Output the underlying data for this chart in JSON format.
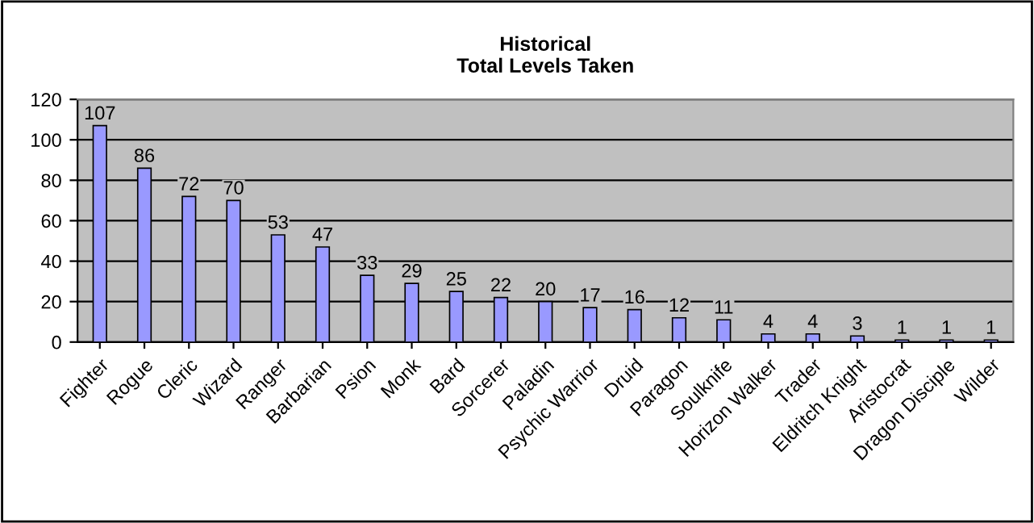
{
  "chart_data": {
    "type": "bar",
    "title": "Historical\nTotal Levels Taken",
    "categories": [
      "Fighter",
      "Rogue",
      "Cleric",
      "Wizard",
      "Ranger",
      "Barbarian",
      "Psion",
      "Monk",
      "Bard",
      "Sorcerer",
      "Paladin",
      "Psychic Warrior",
      "Druid",
      "Paragon",
      "Soulknife",
      "Horizon Walker",
      "Trader",
      "Eldritch Knight",
      "Aristocrat",
      "Dragon Disciple",
      "Wilder"
    ],
    "values": [
      107,
      86,
      72,
      70,
      53,
      47,
      33,
      29,
      25,
      22,
      20,
      17,
      16,
      12,
      11,
      4,
      4,
      3,
      1,
      1,
      1
    ],
    "color": "#9999ff",
    "ylim": [
      0,
      120
    ],
    "yticks": [
      0,
      20,
      40,
      60,
      80,
      100,
      120
    ],
    "grid": "y",
    "data_labels": true
  }
}
